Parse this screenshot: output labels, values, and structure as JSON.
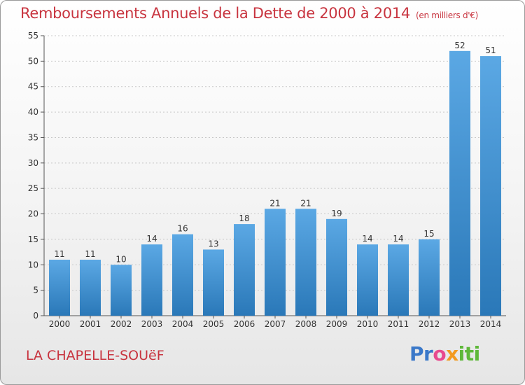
{
  "header": {
    "title": "Remboursements Annuels de la Dette de 2000 à 2014",
    "subtitle": "(en milliers d'€)"
  },
  "footer": {
    "commune": "LA CHAPELLE-SOUëF",
    "brand": [
      "Pr",
      "o",
      "x",
      "iti"
    ]
  },
  "colors": {
    "bar_top": "#5ba8e4",
    "bar_bottom": "#2a78b8",
    "grid": "#c8c8c8",
    "title": "#c8343f"
  },
  "chart_data": {
    "type": "bar",
    "title": "Remboursements Annuels de la Dette de 2000 à 2014",
    "xlabel": "",
    "ylabel": "",
    "ylim": [
      0,
      55
    ],
    "yticks": [
      0,
      5,
      10,
      15,
      20,
      25,
      30,
      35,
      40,
      45,
      50,
      55
    ],
    "grid": true,
    "categories": [
      "2000",
      "2001",
      "2002",
      "2003",
      "2004",
      "2005",
      "2006",
      "2007",
      "2008",
      "2009",
      "2010",
      "2011",
      "2012",
      "2013",
      "2014"
    ],
    "values": [
      11,
      11,
      10,
      14,
      16,
      13,
      18,
      21,
      21,
      19,
      14,
      14,
      15,
      52,
      51
    ]
  }
}
